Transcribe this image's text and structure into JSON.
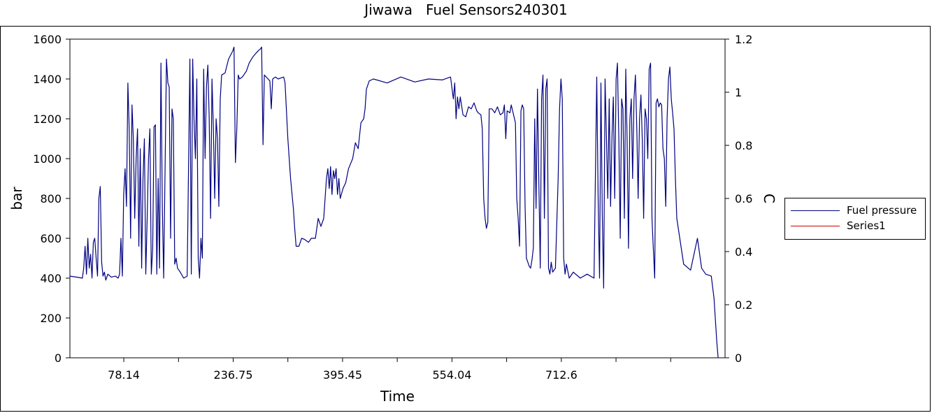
{
  "chart_data": {
    "type": "line",
    "title": "Jiwawa   Fuel Sensors240301",
    "xlabel": "Time",
    "ylabel": "bar",
    "y2label": "C",
    "xlim": [
      0,
      950
    ],
    "ylim": [
      0,
      1600
    ],
    "y2lim": [
      0,
      1.2
    ],
    "x_tick_labels": [
      "78.14",
      "236.75",
      "395.45",
      "554.04",
      "712.6"
    ],
    "x_tick_values": [
      78.14,
      236.75,
      395.45,
      554.04,
      712.6
    ],
    "y_ticks": [
      0,
      200,
      400,
      600,
      800,
      1000,
      1200,
      1400,
      1600
    ],
    "y2_ticks": [
      "0",
      "0.2",
      "0.4",
      "0.6",
      "0.8",
      "1",
      "1.2"
    ],
    "legend_position": "right",
    "grid": false,
    "series": [
      {
        "name": "Fuel pressure",
        "color": "#000080",
        "axis": "left",
        "points": [
          [
            0,
            410
          ],
          [
            10,
            405
          ],
          [
            18,
            400
          ],
          [
            20,
            450
          ],
          [
            22,
            560
          ],
          [
            24,
            420
          ],
          [
            26,
            600
          ],
          [
            28,
            450
          ],
          [
            30,
            520
          ],
          [
            32,
            400
          ],
          [
            34,
            580
          ],
          [
            36,
            600
          ],
          [
            38,
            500
          ],
          [
            40,
            410
          ],
          [
            42,
            800
          ],
          [
            44,
            860
          ],
          [
            46,
            480
          ],
          [
            48,
            410
          ],
          [
            50,
            430
          ],
          [
            52,
            390
          ],
          [
            55,
            420
          ],
          [
            60,
            405
          ],
          [
            66,
            410
          ],
          [
            70,
            400
          ],
          [
            72,
            420
          ],
          [
            74,
            600
          ],
          [
            76,
            410
          ],
          [
            78,
            820
          ],
          [
            80,
            950
          ],
          [
            82,
            760
          ],
          [
            84,
            1380
          ],
          [
            86,
            1150
          ],
          [
            88,
            600
          ],
          [
            90,
            1270
          ],
          [
            92,
            1100
          ],
          [
            94,
            700
          ],
          [
            96,
            1000
          ],
          [
            98,
            1150
          ],
          [
            100,
            560
          ],
          [
            102,
            1050
          ],
          [
            104,
            450
          ],
          [
            106,
            900
          ],
          [
            108,
            1100
          ],
          [
            110,
            420
          ],
          [
            112,
            700
          ],
          [
            114,
            1000
          ],
          [
            116,
            1150
          ],
          [
            118,
            420
          ],
          [
            120,
            550
          ],
          [
            122,
            1160
          ],
          [
            124,
            1170
          ],
          [
            126,
            420
          ],
          [
            128,
            900
          ],
          [
            130,
            450
          ],
          [
            132,
            1480
          ],
          [
            134,
            750
          ],
          [
            136,
            400
          ],
          [
            140,
            1500
          ],
          [
            142,
            1380
          ],
          [
            144,
            1360
          ],
          [
            146,
            600
          ],
          [
            148,
            1250
          ],
          [
            150,
            1200
          ],
          [
            152,
            470
          ],
          [
            154,
            500
          ],
          [
            156,
            450
          ],
          [
            160,
            430
          ],
          [
            165,
            400
          ],
          [
            170,
            410
          ],
          [
            174,
            1500
          ],
          [
            176,
            420
          ],
          [
            178,
            1500
          ],
          [
            180,
            1200
          ],
          [
            182,
            1000
          ],
          [
            184,
            1400
          ],
          [
            186,
            500
          ],
          [
            188,
            400
          ],
          [
            190,
            600
          ],
          [
            192,
            500
          ],
          [
            194,
            1450
          ],
          [
            196,
            1000
          ],
          [
            198,
            1360
          ],
          [
            200,
            1470
          ],
          [
            202,
            1200
          ],
          [
            204,
            700
          ],
          [
            206,
            1400
          ],
          [
            208,
            1150
          ],
          [
            210,
            800
          ],
          [
            212,
            1200
          ],
          [
            214,
            1100
          ],
          [
            216,
            760
          ],
          [
            218,
            1300
          ],
          [
            220,
            1420
          ],
          [
            225,
            1430
          ],
          [
            230,
            1500
          ],
          [
            236,
            1540
          ],
          [
            238,
            1560
          ],
          [
            240,
            980
          ],
          [
            242,
            1150
          ],
          [
            244,
            1420
          ],
          [
            246,
            1400
          ],
          [
            250,
            1410
          ],
          [
            256,
            1440
          ],
          [
            260,
            1480
          ],
          [
            265,
            1510
          ],
          [
            270,
            1530
          ],
          [
            274,
            1545
          ],
          [
            276,
            1550
          ],
          [
            278,
            1560
          ],
          [
            280,
            1070
          ],
          [
            282,
            1420
          ],
          [
            286,
            1405
          ],
          [
            290,
            1390
          ],
          [
            292,
            1250
          ],
          [
            294,
            1400
          ],
          [
            298,
            1410
          ],
          [
            302,
            1400
          ],
          [
            306,
            1405
          ],
          [
            310,
            1410
          ],
          [
            312,
            1380
          ],
          [
            316,
            1100
          ],
          [
            320,
            900
          ],
          [
            324,
            750
          ],
          [
            326,
            650
          ],
          [
            328,
            560
          ],
          [
            332,
            560
          ],
          [
            336,
            600
          ],
          [
            340,
            595
          ],
          [
            346,
            580
          ],
          [
            350,
            600
          ],
          [
            356,
            600
          ],
          [
            360,
            700
          ],
          [
            364,
            660
          ],
          [
            368,
            700
          ],
          [
            372,
            900
          ],
          [
            374,
            950
          ],
          [
            376,
            850
          ],
          [
            378,
            960
          ],
          [
            380,
            820
          ],
          [
            382,
            940
          ],
          [
            384,
            900
          ],
          [
            386,
            950
          ],
          [
            388,
            820
          ],
          [
            390,
            900
          ],
          [
            392,
            800
          ],
          [
            396,
            850
          ],
          [
            400,
            880
          ],
          [
            404,
            950
          ],
          [
            410,
            1000
          ],
          [
            414,
            1080
          ],
          [
            418,
            1050
          ],
          [
            422,
            1180
          ],
          [
            426,
            1200
          ],
          [
            428,
            1250
          ],
          [
            430,
            1350
          ],
          [
            434,
            1390
          ],
          [
            440,
            1400
          ],
          [
            460,
            1380
          ],
          [
            480,
            1410
          ],
          [
            500,
            1385
          ],
          [
            520,
            1400
          ],
          [
            540,
            1395
          ],
          [
            552,
            1410
          ],
          [
            556,
            1300
          ],
          [
            558,
            1380
          ],
          [
            560,
            1200
          ],
          [
            562,
            1310
          ],
          [
            564,
            1250
          ],
          [
            566,
            1310
          ],
          [
            570,
            1220
          ],
          [
            574,
            1210
          ],
          [
            578,
            1260
          ],
          [
            582,
            1250
          ],
          [
            586,
            1280
          ],
          [
            590,
            1240
          ],
          [
            592,
            1230
          ],
          [
            596,
            1220
          ],
          [
            598,
            1150
          ],
          [
            600,
            800
          ],
          [
            602,
            700
          ],
          [
            604,
            650
          ],
          [
            606,
            680
          ],
          [
            608,
            1250
          ],
          [
            612,
            1250
          ],
          [
            616,
            1230
          ],
          [
            620,
            1260
          ],
          [
            624,
            1220
          ],
          [
            628,
            1230
          ],
          [
            630,
            1270
          ],
          [
            632,
            1100
          ],
          [
            634,
            1240
          ],
          [
            638,
            1230
          ],
          [
            640,
            1270
          ],
          [
            642,
            1240
          ],
          [
            646,
            1180
          ],
          [
            648,
            800
          ],
          [
            650,
            700
          ],
          [
            652,
            560
          ],
          [
            654,
            1240
          ],
          [
            656,
            1270
          ],
          [
            658,
            1250
          ],
          [
            660,
            760
          ],
          [
            662,
            500
          ],
          [
            664,
            480
          ],
          [
            666,
            460
          ],
          [
            668,
            450
          ],
          [
            670,
            490
          ],
          [
            672,
            550
          ],
          [
            674,
            1200
          ],
          [
            676,
            750
          ],
          [
            678,
            1350
          ],
          [
            680,
            880
          ],
          [
            682,
            450
          ],
          [
            684,
            1300
          ],
          [
            686,
            1420
          ],
          [
            688,
            700
          ],
          [
            690,
            1350
          ],
          [
            692,
            1400
          ],
          [
            694,
            450
          ],
          [
            696,
            420
          ],
          [
            698,
            480
          ],
          [
            700,
            430
          ],
          [
            704,
            450
          ],
          [
            708,
            900
          ],
          [
            710,
            1250
          ],
          [
            712,
            1400
          ],
          [
            714,
            1300
          ],
          [
            716,
            500
          ],
          [
            718,
            420
          ],
          [
            720,
            470
          ],
          [
            724,
            400
          ],
          [
            730,
            430
          ],
          [
            740,
            400
          ],
          [
            750,
            420
          ],
          [
            760,
            400
          ],
          [
            764,
            1410
          ],
          [
            766,
            800
          ],
          [
            768,
            400
          ],
          [
            770,
            1380
          ],
          [
            772,
            720
          ],
          [
            774,
            350
          ],
          [
            776,
            1400
          ],
          [
            778,
            1100
          ],
          [
            780,
            800
          ],
          [
            782,
            1300
          ],
          [
            784,
            760
          ],
          [
            786,
            1100
          ],
          [
            788,
            1310
          ],
          [
            790,
            800
          ],
          [
            792,
            1400
          ],
          [
            794,
            1480
          ],
          [
            796,
            1100
          ],
          [
            798,
            600
          ],
          [
            800,
            1300
          ],
          [
            802,
            1250
          ],
          [
            804,
            700
          ],
          [
            806,
            1450
          ],
          [
            808,
            1100
          ],
          [
            810,
            550
          ],
          [
            812,
            1200
          ],
          [
            814,
            1300
          ],
          [
            816,
            900
          ],
          [
            818,
            1300
          ],
          [
            820,
            1420
          ],
          [
            822,
            1150
          ],
          [
            824,
            800
          ],
          [
            826,
            1200
          ],
          [
            828,
            1320
          ],
          [
            830,
            1100
          ],
          [
            832,
            700
          ],
          [
            834,
            1250
          ],
          [
            836,
            1200
          ],
          [
            838,
            1000
          ],
          [
            840,
            1450
          ],
          [
            842,
            1480
          ],
          [
            844,
            700
          ],
          [
            846,
            550
          ],
          [
            848,
            400
          ],
          [
            850,
            1280
          ],
          [
            852,
            1300
          ],
          [
            854,
            1260
          ],
          [
            856,
            1280
          ],
          [
            858,
            1270
          ],
          [
            860,
            1050
          ],
          [
            862,
            1000
          ],
          [
            864,
            760
          ],
          [
            866,
            1200
          ],
          [
            868,
            1400
          ],
          [
            870,
            1460
          ],
          [
            872,
            1300
          ],
          [
            874,
            1230
          ],
          [
            876,
            1150
          ],
          [
            878,
            900
          ],
          [
            880,
            700
          ]
        ]
      },
      {
        "name": "Series1",
        "color": "#cc0000",
        "axis": "right",
        "points": []
      }
    ]
  }
}
